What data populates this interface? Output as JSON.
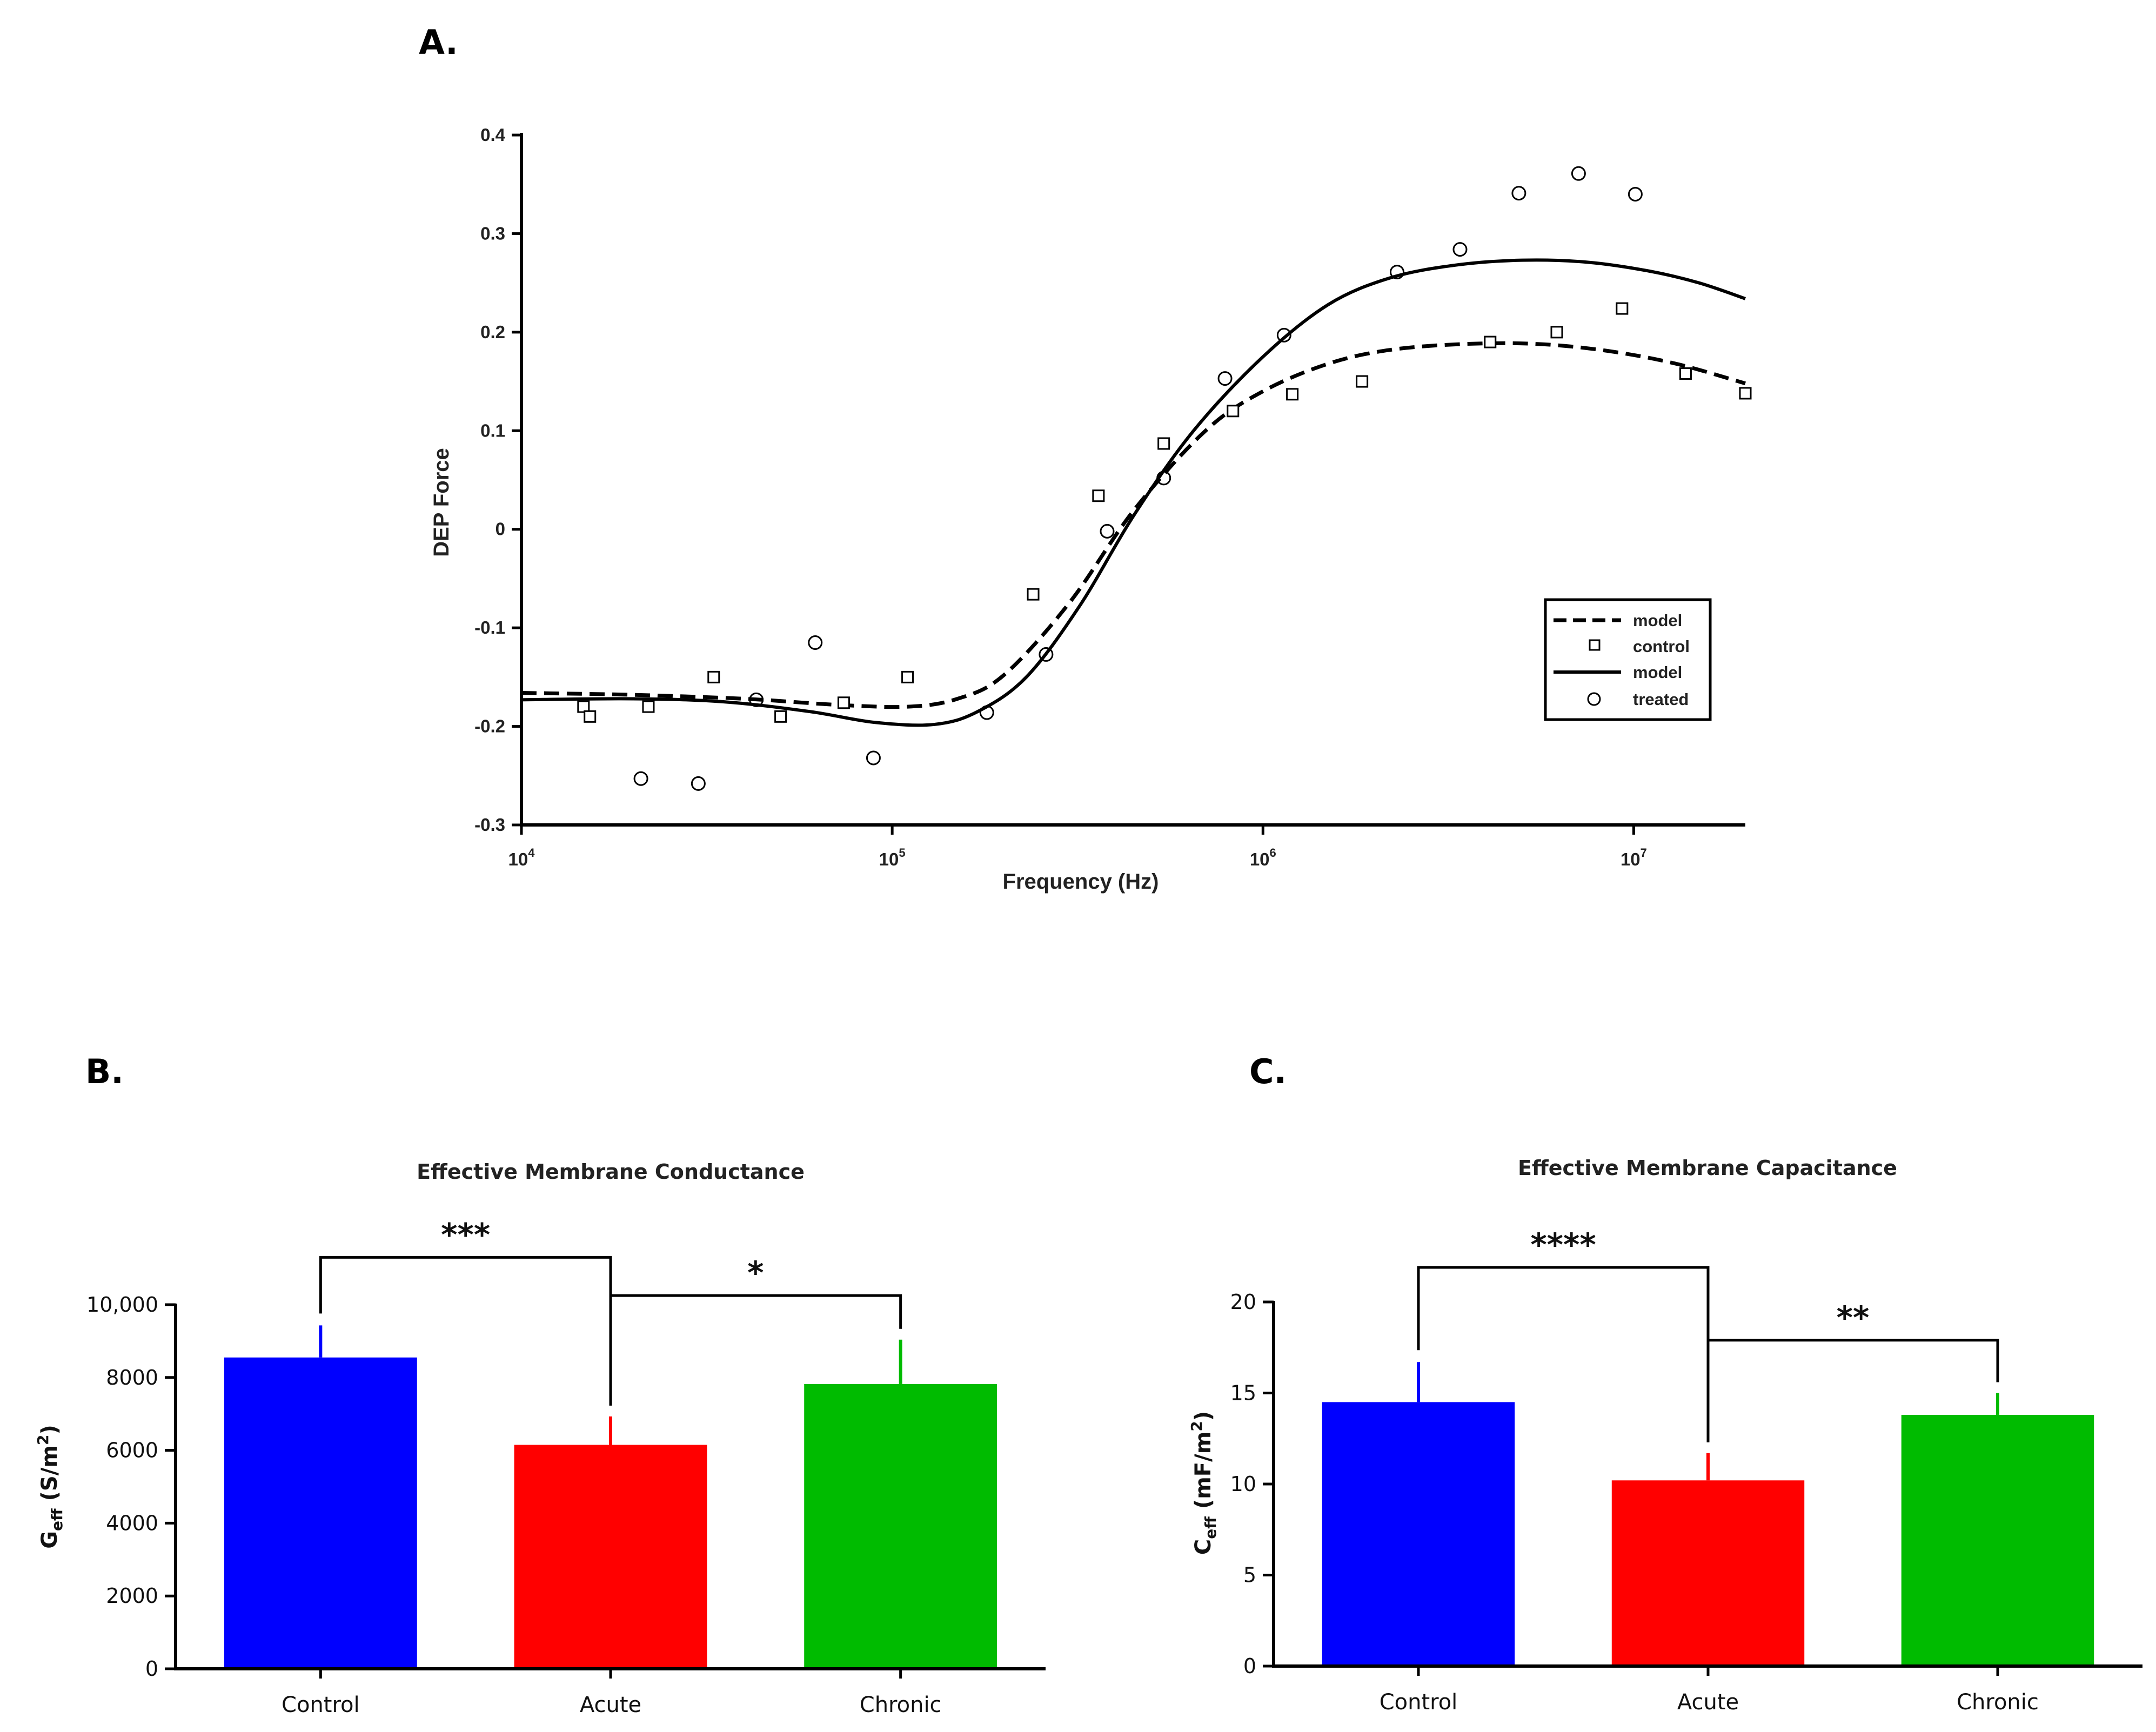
{
  "panels": {
    "a": {
      "letter": "A."
    },
    "b": {
      "letter": "B."
    },
    "c": {
      "letter": "C."
    }
  },
  "colors": {
    "control": "#0000ff",
    "acute": "#ff0000",
    "chronic": "#00bb00",
    "axis": "#000000"
  },
  "chart_data": [
    {
      "id": "A",
      "type": "scatter",
      "title": "",
      "xlabel": "Frequency (Hz)",
      "ylabel": "DEP Force",
      "xscale": "log",
      "xlim": [
        10000,
        20000000
      ],
      "ylim": [
        -0.3,
        0.4
      ],
      "yticks": [
        "0.4",
        "0.3",
        "0.2",
        "0.1",
        "0",
        "-0.1",
        "-0.2",
        "-0.3"
      ],
      "ytick_values": [
        0.4,
        0.3,
        0.2,
        0.1,
        0,
        -0.1,
        -0.2,
        -0.3
      ],
      "xticks": [
        {
          "value": 10000,
          "base": "10",
          "exp": "4"
        },
        {
          "value": 100000,
          "base": "10",
          "exp": "5"
        },
        {
          "value": 1000000,
          "base": "10",
          "exp": "6"
        },
        {
          "value": 10000000,
          "base": "10",
          "exp": "7"
        }
      ],
      "legend_position": "right",
      "legend": [
        {
          "label": "model",
          "style": "dashed-line"
        },
        {
          "label": "control",
          "style": "square-marker"
        },
        {
          "label": "model",
          "style": "solid-line"
        },
        {
          "label": "treated",
          "style": "circle-marker"
        }
      ],
      "series": [
        {
          "name": "control",
          "marker": "square",
          "x": [
            14700,
            15300,
            22000,
            33000,
            50000,
            74000,
            110000,
            240000,
            360000,
            540000,
            830000,
            1200000,
            1850000,
            4100000,
            6200000,
            9300000,
            13800000,
            20000000
          ],
          "y": [
            -0.18,
            -0.19,
            -0.18,
            -0.15,
            -0.19,
            -0.176,
            -0.15,
            -0.066,
            0.034,
            0.087,
            0.12,
            0.137,
            0.15,
            0.19,
            0.2,
            0.224,
            0.158,
            0.138
          ]
        },
        {
          "name": "treated",
          "marker": "circle",
          "x": [
            21000,
            30000,
            43000,
            62000,
            89000,
            180000,
            260000,
            380000,
            540000,
            790000,
            1140000,
            2300000,
            3400000,
            4900000,
            7100000,
            10100000
          ],
          "y": [
            -0.253,
            -0.258,
            -0.173,
            -0.115,
            -0.232,
            -0.186,
            -0.127,
            -0.002,
            0.052,
            0.153,
            0.197,
            0.261,
            0.284,
            0.341,
            0.361,
            0.34
          ]
        },
        {
          "name": "model (control)",
          "style": "dashed",
          "x": [
            10000,
            20000,
            40000,
            70000,
            110000,
            150000,
            200000,
            300000,
            450000,
            700000,
            1000000,
            1500000,
            2200000,
            3500000,
            5500000,
            8500000,
            13000000,
            20000000
          ],
          "y": [
            -0.166,
            -0.168,
            -0.172,
            -0.178,
            -0.18,
            -0.172,
            -0.148,
            -0.075,
            0.02,
            0.1,
            0.14,
            0.168,
            0.182,
            0.188,
            0.188,
            0.181,
            0.168,
            0.148
          ]
        },
        {
          "name": "model (treated)",
          "style": "solid",
          "x": [
            10000,
            20000,
            35000,
            60000,
            90000,
            130000,
            170000,
            230000,
            320000,
            450000,
            650000,
            1000000,
            1500000,
            2200000,
            3300000,
            5000000,
            7500000,
            11000000,
            15000000,
            20000000
          ],
          "y": [
            -0.173,
            -0.172,
            -0.175,
            -0.185,
            -0.196,
            -0.198,
            -0.185,
            -0.15,
            -0.078,
            0.015,
            0.1,
            0.175,
            0.228,
            0.255,
            0.268,
            0.273,
            0.271,
            0.262,
            0.25,
            0.234
          ]
        }
      ]
    },
    {
      "id": "B",
      "type": "bar",
      "title": "Effective Membrane Conductance",
      "ylabel": {
        "main": "G",
        "sub": "eff",
        "unit": " (S/m",
        "sup": "2",
        "close": ")"
      },
      "ylim": [
        0,
        10000
      ],
      "yticks": [
        "0",
        "2000",
        "4000",
        "6000",
        "8000",
        "10,000"
      ],
      "ytick_values": [
        0,
        2000,
        4000,
        6000,
        8000,
        10000
      ],
      "categories": [
        "Control",
        "Acute",
        "Chronic"
      ],
      "values": [
        8550,
        6150,
        7820
      ],
      "errors": [
        880,
        780,
        1220
      ],
      "significance": [
        {
          "from": 0,
          "to": 1,
          "label": "***",
          "level": 11300
        },
        {
          "from": 1,
          "to": 2,
          "label": "*",
          "level": 10250
        }
      ]
    },
    {
      "id": "C",
      "type": "bar",
      "title": "Effective Membrane Capacitance",
      "ylabel": {
        "main": "C",
        "sub": "eff",
        "unit": " (mF/m",
        "sup": "2",
        "close": ")"
      },
      "ylim": [
        0,
        20
      ],
      "yticks": [
        "0",
        "5",
        "10",
        "15",
        "20"
      ],
      "ytick_values": [
        0,
        5,
        10,
        15,
        20
      ],
      "categories": [
        "Control",
        "Acute",
        "Chronic"
      ],
      "values": [
        14.5,
        10.2,
        13.8
      ],
      "errors": [
        2.2,
        1.5,
        1.2
      ],
      "significance": [
        {
          "from": 0,
          "to": 1,
          "label": "****",
          "level": 21.9
        },
        {
          "from": 1,
          "to": 2,
          "label": "**",
          "level": 17.9
        }
      ]
    }
  ]
}
